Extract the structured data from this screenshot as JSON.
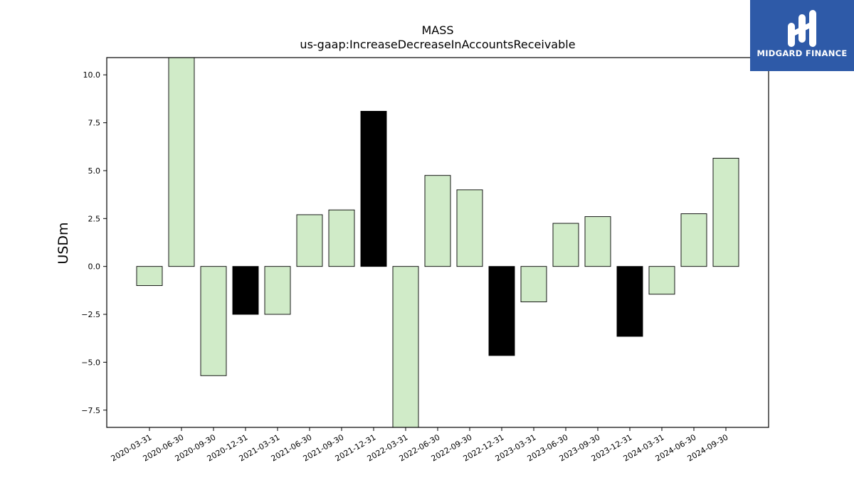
{
  "chart_data": {
    "type": "bar",
    "title": "MASS",
    "subtitle": "us-gaap:IncreaseDecreaseInAccountsReceivable",
    "xlabel": "",
    "ylabel": "USDm",
    "ylim": [
      -8.4,
      10.9
    ],
    "yticks": [
      10.0,
      7.5,
      5.0,
      2.5,
      0.0,
      -2.5,
      -5.0,
      -7.5
    ],
    "ytick_labels": [
      "10.0",
      "7.5",
      "5.0",
      "2.5",
      "0.0",
      "−2.5",
      "−5.0",
      "−7.5"
    ],
    "grid": false,
    "legend": "none",
    "categories": [
      "2020-03-31",
      "2020-06-30",
      "2020-09-30",
      "2020-12-31",
      "2021-03-31",
      "2021-06-30",
      "2021-09-30",
      "2021-12-31",
      "2022-03-31",
      "2022-06-30",
      "2022-09-30",
      "2022-12-31",
      "2023-03-31",
      "2023-06-30",
      "2023-09-30",
      "2023-12-31",
      "2024-03-31",
      "2024-06-30",
      "2024-09-30"
    ],
    "values": [
      -1.0,
      10.9,
      -5.7,
      -2.5,
      -2.5,
      2.7,
      2.95,
      8.1,
      -8.4,
      4.75,
      4.0,
      -4.65,
      -1.85,
      2.25,
      2.6,
      -3.65,
      -1.45,
      2.75,
      5.65
    ],
    "bar_colors": [
      "#d0ebc8",
      "#d0ebc8",
      "#d0ebc8",
      "#000000",
      "#d0ebc8",
      "#d0ebc8",
      "#d0ebc8",
      "#000000",
      "#d0ebc8",
      "#d0ebc8",
      "#d0ebc8",
      "#000000",
      "#d0ebc8",
      "#d0ebc8",
      "#d0ebc8",
      "#000000",
      "#d0ebc8",
      "#d0ebc8",
      "#d0ebc8"
    ]
  },
  "logo": {
    "text": "MIDGARD FINANCE",
    "background": "#2e5aa8",
    "icon": "midgard-logo-icon"
  }
}
